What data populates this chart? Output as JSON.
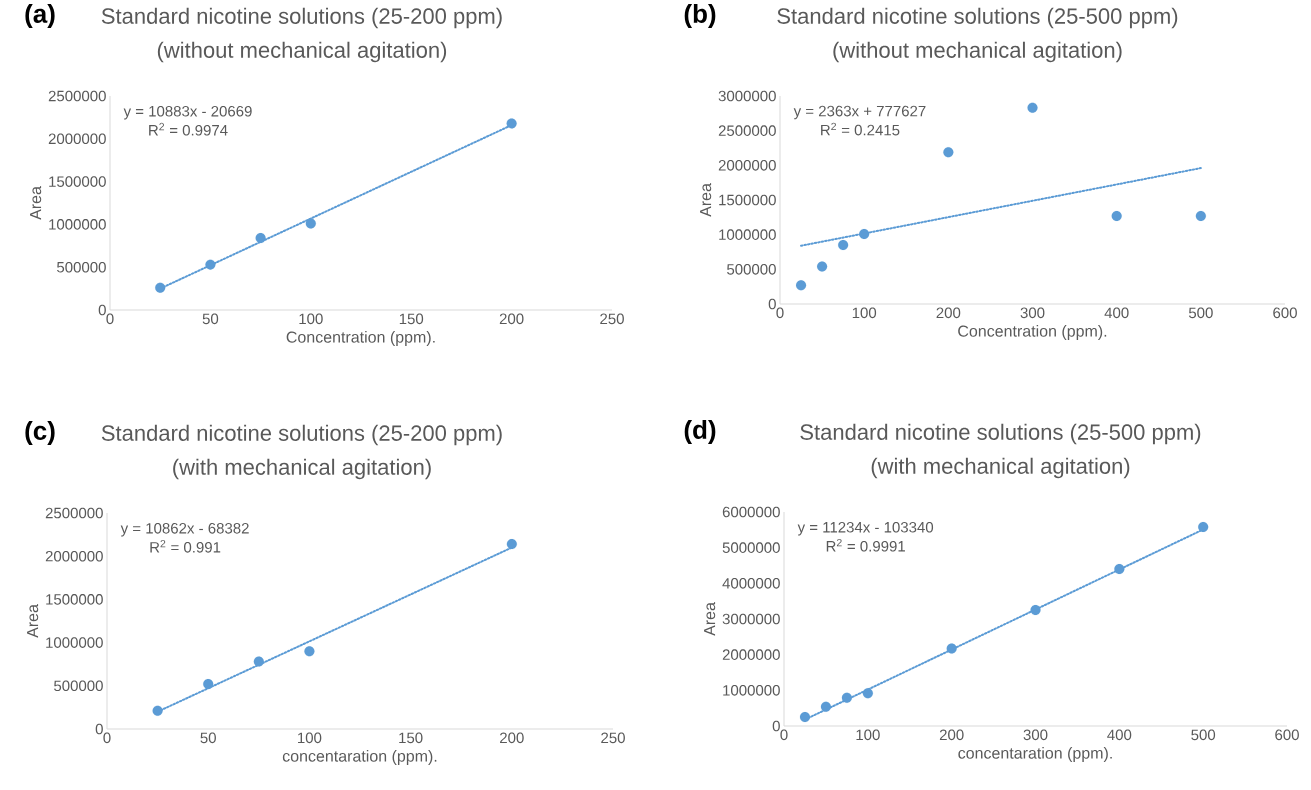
{
  "chart_data": [
    {
      "type": "scatter",
      "title": "Standard nicotine solutions (25-200 ppm)",
      "subtitle": "(without mechanical agitation)",
      "xlabel": "Concentration (ppm).",
      "ylabel": "Area",
      "annotations": [
        "(a)",
        "y = 10883x - 20669",
        "R$^{2}$ = 0.9974"
      ],
      "xlim": [
        0,
        250
      ],
      "xticks": [
        0,
        50,
        100,
        150,
        200,
        250
      ],
      "ylim": [
        0,
        2500000
      ],
      "yticks": [
        0,
        500000,
        1000000,
        1500000,
        2000000,
        2500000
      ],
      "series": [
        {
          "marker": "circle",
          "color": "#5b9bd5",
          "x": [
            25,
            50,
            75,
            100,
            200
          ],
          "values": [
            260000,
            530000,
            840000,
            1010000,
            2180000
          ]
        },
        {
          "type": "line",
          "marker": "none",
          "line_style": "dotted",
          "color": "#5b9bd5",
          "x": [
            25,
            200
          ],
          "values": [
            250000,
            2160000
          ]
        }
      ]
    },
    {
      "type": "scatter",
      "title": "Standard nicotine solutions (25-500 ppm)",
      "subtitle": "(without mechanical agitation)",
      "xlabel": "Concentration (ppm).",
      "ylabel": "Area",
      "annotations": [
        "(b)",
        "y = 2363x + 777627",
        "R$^{2}$ = 0.2415"
      ],
      "xlim": [
        0,
        600
      ],
      "xticks": [
        0,
        100,
        200,
        300,
        400,
        500,
        600
      ],
      "ylim": [
        0,
        3000000
      ],
      "yticks": [
        0,
        500000,
        1000000,
        1500000,
        2000000,
        2500000,
        3000000
      ],
      "series": [
        {
          "marker": "circle",
          "color": "#5b9bd5",
          "x": [
            25,
            50,
            75,
            100,
            200,
            300,
            400,
            500
          ],
          "values": [
            270000,
            540000,
            850000,
            1010000,
            2190000,
            2830000,
            1270000,
            1270000
          ]
        },
        {
          "type": "line",
          "marker": "none",
          "line_style": "dotted",
          "color": "#5b9bd5",
          "x": [
            25,
            500
          ],
          "values": [
            840000,
            1960000
          ]
        }
      ]
    },
    {
      "type": "scatter",
      "title": "Standard nicotine solutions (25-200 ppm)",
      "subtitle": "(with mechanical agitation)",
      "xlabel": "concentaration (ppm).",
      "ylabel": "Area",
      "annotations": [
        "(c)",
        "y = 10862x - 68382",
        "R$^{2}$ = 0.991"
      ],
      "xlim": [
        0,
        250
      ],
      "xticks": [
        0,
        50,
        100,
        150,
        200,
        250
      ],
      "ylim": [
        0,
        2500000
      ],
      "yticks": [
        0,
        500000,
        1000000,
        1500000,
        2000000,
        2500000
      ],
      "series": [
        {
          "marker": "circle",
          "color": "#5b9bd5",
          "x": [
            25,
            50,
            75,
            100,
            200
          ],
          "values": [
            210000,
            520000,
            780000,
            900000,
            2140000
          ]
        },
        {
          "type": "line",
          "marker": "none",
          "line_style": "dotted",
          "color": "#5b9bd5",
          "x": [
            25,
            200
          ],
          "values": [
            200000,
            2100000
          ]
        }
      ]
    },
    {
      "type": "scatter",
      "title": "Standard nicotine solutions (25-500 ppm)",
      "subtitle": "(with mechanical agitation)",
      "xlabel": "concentaration (ppm).",
      "ylabel": "Area",
      "annotations": [
        "(d)",
        "y = 11234x - 103340",
        "R$^{2}$ = 0.9991"
      ],
      "xlim": [
        0,
        600
      ],
      "xticks": [
        0,
        100,
        200,
        300,
        400,
        500,
        600
      ],
      "ylim": [
        0,
        6000000
      ],
      "yticks": [
        0,
        1000000,
        2000000,
        3000000,
        4000000,
        5000000,
        6000000
      ],
      "series": [
        {
          "marker": "circle",
          "color": "#5b9bd5",
          "x": [
            25,
            50,
            75,
            100,
            200,
            300,
            400,
            500
          ],
          "values": [
            250000,
            540000,
            790000,
            920000,
            2170000,
            3250000,
            4400000,
            5580000
          ]
        },
        {
          "type": "line",
          "marker": "none",
          "line_style": "dotted",
          "color": "#5b9bd5",
          "x": [
            25,
            500
          ],
          "values": [
            180000,
            5510000
          ]
        }
      ]
    }
  ]
}
